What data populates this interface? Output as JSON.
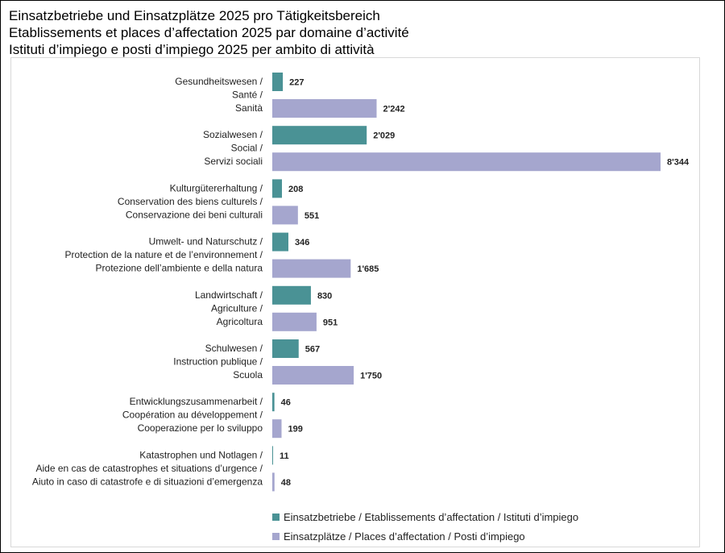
{
  "titles": {
    "de": "Einsatzbetriebe und Einsatzplätze 2025 pro Tätigkeitsbereich",
    "fr": "Etablissements et places d’affectation 2025 par domaine d’activité",
    "it": "Istituti d’impiego e posti d’impiego 2025 per ambito di attività"
  },
  "colors": {
    "betriebe": "#4a9295",
    "plaetze": "#a5a6ce"
  },
  "chart_data": {
    "type": "bar",
    "orientation": "horizontal",
    "title": "Einsatzbetriebe und Einsatzplätze 2025 pro Tätigkeitsbereich",
    "categories": [
      [
        "Gesundheitswesen /",
        "Santé /",
        "Sanità"
      ],
      [
        "Sozialwesen /",
        "Social /",
        "Servizi sociali"
      ],
      [
        "Kulturgütererhaltung /",
        "Conservation des biens culturels /",
        "Conservazione dei beni culturali"
      ],
      [
        "Umwelt- und Naturschutz /",
        "Protection de la nature et de l’environnement /",
        "Protezione dell’ambiente e della natura"
      ],
      [
        "Landwirtschaft /",
        "Agriculture /",
        "Agricoltura"
      ],
      [
        "Schulwesen /",
        "Instruction publique /",
        "Scuola"
      ],
      [
        "Entwicklungszusammenarbeit /",
        "Coopération au développement /",
        "Cooperazione per lo sviluppo"
      ],
      [
        "Katastrophen und Notlagen /",
        "Aide en cas de catastrophes et situations d’urgence /",
        "Aiuto in caso di catastrofe e di situazioni d’emergenza"
      ]
    ],
    "series": [
      {
        "name": "Einsatzbetriebe / Etablissements d’affectation / Istituti d’impiego",
        "values": [
          227,
          2029,
          208,
          346,
          830,
          567,
          46,
          11
        ],
        "labels": [
          "227",
          "2'029",
          "208",
          "346",
          "830",
          "567",
          "46",
          "11"
        ]
      },
      {
        "name": "Einsatzplätze / Places d’affectation / Posti d’impiego",
        "values": [
          2242,
          8344,
          551,
          1685,
          951,
          1750,
          199,
          48
        ],
        "labels": [
          "2'242",
          "8'344",
          "551",
          "1'685",
          "951",
          "1'750",
          "199",
          "48"
        ]
      }
    ],
    "xlim": [
      0,
      8344
    ],
    "grid": false,
    "legend": "bottom"
  }
}
